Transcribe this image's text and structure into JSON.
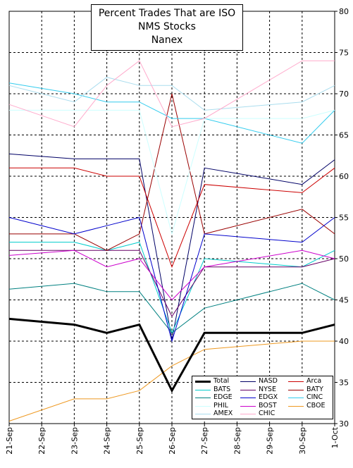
{
  "chart_data": {
    "type": "line",
    "title_lines": [
      "Percent Trades That are ISO",
      "NMS Stocks",
      "Nanex"
    ],
    "x": [
      "21-Sep",
      "22-Sep",
      "23-Sep",
      "24-Sep",
      "25-Sep",
      "26-Sep",
      "27-Sep",
      "28-Sep",
      "29-Sep",
      "30-Sep",
      "1-Oct"
    ],
    "ylim": [
      30,
      80
    ],
    "y_ticks": [
      "30",
      "35",
      "40",
      "45",
      "50",
      "55",
      "60",
      "65",
      "70",
      "75",
      "80"
    ],
    "grid": "dashed, both axes",
    "y_axis_side": "right",
    "legend_position": "bottom-right",
    "series": [
      {
        "name": "Total",
        "color": "#000000",
        "width": 3,
        "values": [
          42.7,
          null,
          42,
          41,
          42,
          34,
          41,
          null,
          null,
          41,
          42
        ]
      },
      {
        "name": "NASD",
        "color": "#000066",
        "width": 1,
        "values": [
          62.7,
          null,
          62.1,
          62.1,
          62.1,
          40.2,
          61,
          null,
          null,
          59,
          62
        ]
      },
      {
        "name": "Arca",
        "color": "#cc0000",
        "width": 1,
        "values": [
          61,
          null,
          61,
          60,
          60,
          49,
          59,
          null,
          null,
          58,
          61
        ]
      },
      {
        "name": "BATS",
        "color": "#00cccc",
        "width": 1,
        "values": [
          52,
          null,
          52,
          51,
          52,
          41,
          50,
          null,
          null,
          49,
          51
        ]
      },
      {
        "name": "NYSE",
        "color": "#660066",
        "width": 1,
        "values": [
          51,
          null,
          51,
          51,
          51,
          43,
          49,
          null,
          null,
          49,
          50
        ]
      },
      {
        "name": "BATY",
        "color": "#990000",
        "width": 1,
        "values": [
          53,
          null,
          53,
          51,
          53,
          70,
          53,
          null,
          null,
          56,
          53
        ]
      },
      {
        "name": "EDGE",
        "color": "#008080",
        "width": 1,
        "values": [
          46.3,
          null,
          47,
          46,
          46,
          41,
          44,
          null,
          null,
          47,
          45
        ]
      },
      {
        "name": "EDGX",
        "color": "#0000cc",
        "width": 1,
        "values": [
          55,
          null,
          53,
          54,
          55,
          40,
          53,
          null,
          null,
          52,
          55
        ]
      },
      {
        "name": "CINC",
        "color": "#33ccee",
        "width": 1,
        "values": [
          71.3,
          null,
          70,
          69,
          69,
          67,
          67,
          null,
          null,
          64,
          68
        ]
      },
      {
        "name": "PHIL",
        "color": "#ccffff",
        "width": 1,
        "values": [
          68,
          null,
          68,
          68,
          68,
          53,
          67,
          null,
          null,
          67,
          68
        ]
      },
      {
        "name": "BOST",
        "color": "#cc00cc",
        "width": 1,
        "values": [
          50.4,
          null,
          51,
          49,
          50,
          45,
          49,
          null,
          null,
          51,
          50
        ]
      },
      {
        "name": "CBOE",
        "color": "#ee9922",
        "width": 1,
        "values": [
          30.3,
          null,
          33,
          33,
          34,
          37,
          39,
          null,
          null,
          40,
          40
        ]
      },
      {
        "name": "AMEX",
        "color": "#aaddee",
        "width": 1,
        "values": [
          71,
          null,
          69,
          72,
          71,
          71,
          68,
          null,
          null,
          69,
          71
        ]
      },
      {
        "name": "CHIC",
        "color": "#ffaacc",
        "width": 1,
        "values": [
          68.7,
          null,
          66,
          71,
          74,
          66,
          67,
          null,
          null,
          74,
          74
        ]
      }
    ]
  }
}
